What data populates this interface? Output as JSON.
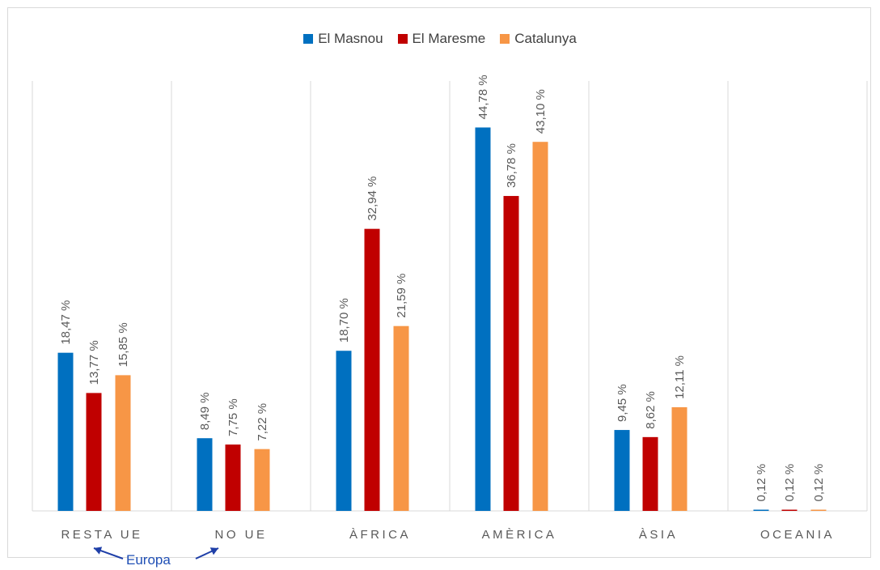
{
  "legend": {
    "items": [
      {
        "label": "El Masnou",
        "color": "#0070c0"
      },
      {
        "label": "El Maresme",
        "color": "#c00000"
      },
      {
        "label": "Catalunya",
        "color": "#f79646"
      }
    ]
  },
  "annotation": {
    "europa": "Europa"
  },
  "chart_data": {
    "type": "bar",
    "categories": [
      "RESTA UE",
      "NO UE",
      "ÀFRICA",
      "AMÈRICA",
      "ÀSIA",
      "OCEANIA"
    ],
    "series": [
      {
        "name": "El Masnou",
        "color": "#0070c0",
        "values": [
          18.47,
          8.49,
          18.7,
          44.78,
          9.45,
          0.12
        ],
        "labels": [
          "18,47 %",
          "8,49 %",
          "18,70 %",
          "44,78 %",
          "9,45 %",
          "0,12 %"
        ]
      },
      {
        "name": "El Maresme",
        "color": "#c00000",
        "values": [
          13.77,
          7.75,
          32.94,
          36.78,
          8.62,
          0.12
        ],
        "labels": [
          "13,77 %",
          "7,75 %",
          "32,94 %",
          "36,78 %",
          "8,62 %",
          "0,12 %"
        ]
      },
      {
        "name": "Catalunya",
        "color": "#f79646",
        "values": [
          15.85,
          7.22,
          21.59,
          43.1,
          12.11,
          0.12
        ],
        "labels": [
          "15,85 %",
          "7,22 %",
          "21,59 %",
          "43,10 %",
          "12,11 %",
          "0,12 %"
        ]
      }
    ],
    "ylim": [
      0,
      50
    ],
    "grid": "vertical category separators",
    "legend_position": "top"
  }
}
